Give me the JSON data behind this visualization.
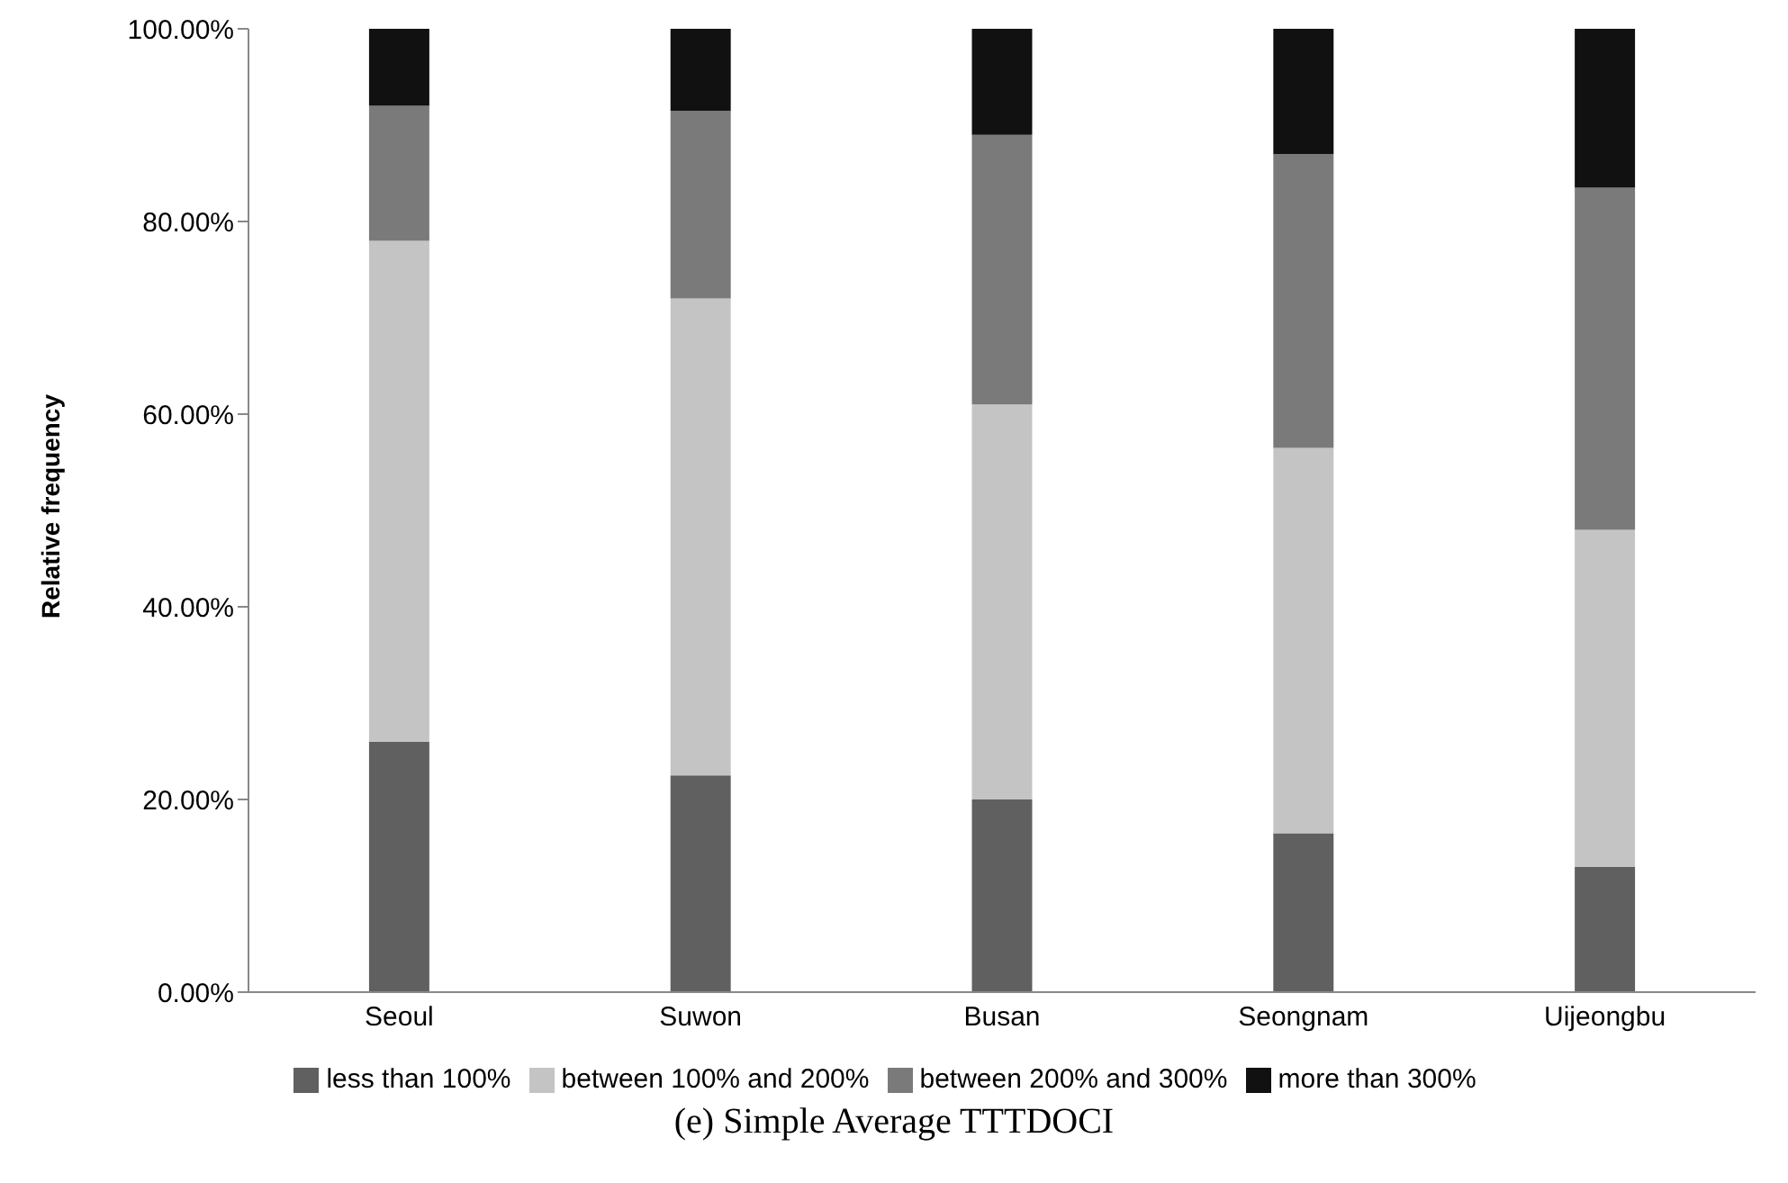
{
  "chart_data": {
    "type": "bar",
    "title": "(e) Simple Average TTTDOCI",
    "ylabel": "Relative frequency",
    "categories": [
      "Seoul",
      "Suwon",
      "Busan",
      "Seongnam",
      "Uijeongbu"
    ],
    "stacked": true,
    "series": [
      {
        "name": "less than 100%",
        "color": "#606060",
        "values": [
          26,
          22.5,
          20,
          16.5,
          13
        ]
      },
      {
        "name": "between 100% and 200%",
        "color": "#c4c4c4",
        "values": [
          52,
          49.5,
          41,
          40,
          35
        ]
      },
      {
        "name": "between 200% and 300%",
        "color": "#7a7a7a",
        "values": [
          14,
          19.5,
          28,
          30.5,
          35.5
        ]
      },
      {
        "name": "more than 300%",
        "color": "#111111",
        "values": [
          8,
          8.5,
          11,
          13,
          16.5
        ]
      }
    ],
    "ylim": [
      0,
      100
    ],
    "yticks": [
      {
        "value": 0,
        "label": "0.00%"
      },
      {
        "value": 20,
        "label": "20.00%"
      },
      {
        "value": 40,
        "label": "40.00%"
      },
      {
        "value": 60,
        "label": "60.00%"
      },
      {
        "value": 80,
        "label": "80.00%"
      },
      {
        "value": 100,
        "label": "100.00%"
      }
    ],
    "grid": false,
    "legend": "bottom"
  }
}
